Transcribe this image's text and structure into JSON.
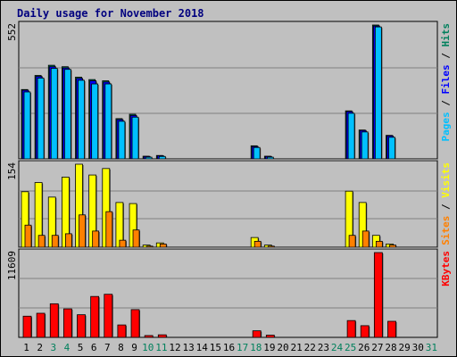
{
  "title": "Daily usage for November 2018",
  "colors": {
    "hits": "#00805c",
    "files": "#0000ff",
    "pages": "#00c0ff",
    "visits": "#ffff00",
    "sites": "#ff8000",
    "kbytes": "#ff0000",
    "frame_bg": "#c0c0c0",
    "title": "#00007f",
    "weekend_day": "#00805c"
  },
  "chart_data": [
    {
      "type": "bar",
      "ymax_label": "552",
      "ylim": [
        0,
        552
      ],
      "legend": [
        "Pages",
        "Files",
        "Hits"
      ],
      "legend_separator": " / ",
      "categories": [
        "1",
        "2",
        "3",
        "4",
        "5",
        "6",
        "7",
        "8",
        "9",
        "10",
        "11",
        "12",
        "13",
        "14",
        "15",
        "16",
        "17",
        "18",
        "19",
        "20",
        "21",
        "22",
        "23",
        "24",
        "25",
        "26",
        "27",
        "28",
        "29",
        "30",
        "31"
      ],
      "series": [
        {
          "name": "Hits",
          "values": [
            286,
            344,
            386,
            380,
            337,
            327,
            322,
            166,
            184,
            11,
            14,
            0,
            0,
            0,
            0,
            0,
            0,
            54,
            11,
            0,
            0,
            0,
            0,
            0,
            198,
            119,
            552,
            97,
            0,
            0,
            0
          ]
        },
        {
          "name": "Files",
          "values": [
            283,
            340,
            380,
            375,
            332,
            322,
            317,
            162,
            179,
            10,
            13,
            0,
            0,
            0,
            0,
            0,
            0,
            51,
            10,
            0,
            0,
            0,
            0,
            0,
            195,
            117,
            548,
            95,
            0,
            0,
            0
          ]
        },
        {
          "name": "Pages",
          "values": [
            276,
            333,
            373,
            369,
            324,
            309,
            309,
            155,
            172,
            7,
            10,
            0,
            0,
            0,
            0,
            0,
            0,
            47,
            7,
            0,
            0,
            0,
            0,
            0,
            188,
            111,
            544,
            89,
            0,
            0,
            0
          ]
        }
      ]
    },
    {
      "type": "bar",
      "ymax_label": "154",
      "ylim": [
        0,
        154
      ],
      "legend": [
        "Sites",
        "Visits"
      ],
      "legend_separator": " / ",
      "categories": [
        "1",
        "2",
        "3",
        "4",
        "5",
        "6",
        "7",
        "8",
        "9",
        "10",
        "11",
        "12",
        "13",
        "14",
        "15",
        "16",
        "17",
        "18",
        "19",
        "20",
        "21",
        "22",
        "23",
        "24",
        "25",
        "26",
        "27",
        "28",
        "29",
        "30",
        "31"
      ],
      "series": [
        {
          "name": "Visits",
          "values": [
            103,
            120,
            93,
            130,
            154,
            134,
            146,
            83,
            81,
            4,
            8,
            0,
            0,
            0,
            0,
            0,
            0,
            18,
            4,
            0,
            0,
            0,
            0,
            0,
            104,
            83,
            22,
            6,
            0,
            0,
            0
          ]
        },
        {
          "name": "Sites",
          "values": [
            41,
            22,
            22,
            25,
            60,
            30,
            66,
            13,
            32,
            2,
            6,
            0,
            0,
            0,
            0,
            0,
            0,
            11,
            2,
            0,
            0,
            0,
            0,
            0,
            22,
            30,
            11,
            4,
            0,
            0,
            0
          ]
        }
      ]
    },
    {
      "type": "bar",
      "ymax_label": "11609",
      "ylim": [
        0,
        11609
      ],
      "legend": [
        "KBytes"
      ],
      "categories": [
        "1",
        "2",
        "3",
        "4",
        "5",
        "6",
        "7",
        "8",
        "9",
        "10",
        "11",
        "12",
        "13",
        "14",
        "15",
        "16",
        "17",
        "18",
        "19",
        "20",
        "21",
        "22",
        "23",
        "24",
        "25",
        "26",
        "27",
        "28",
        "29",
        "30",
        "31"
      ],
      "series": [
        {
          "name": "KBytes",
          "values": [
            2900,
            3300,
            4600,
            3900,
            3100,
            5600,
            5900,
            1700,
            3800,
            250,
            350,
            0,
            0,
            0,
            0,
            0,
            0,
            900,
            300,
            0,
            0,
            0,
            0,
            0,
            2300,
            1600,
            11609,
            2200,
            0,
            0,
            0
          ]
        }
      ]
    }
  ],
  "x_labels": [
    "1",
    "2",
    "3",
    "4",
    "5",
    "6",
    "7",
    "8",
    "9",
    "10",
    "11",
    "12",
    "13",
    "14",
    "15",
    "16",
    "17",
    "18",
    "19",
    "20",
    "21",
    "22",
    "23",
    "24",
    "25",
    "26",
    "27",
    "28",
    "29",
    "30",
    "31"
  ],
  "weekend_days": [
    "3",
    "4",
    "10",
    "11",
    "17",
    "18",
    "24",
    "25",
    "31"
  ]
}
